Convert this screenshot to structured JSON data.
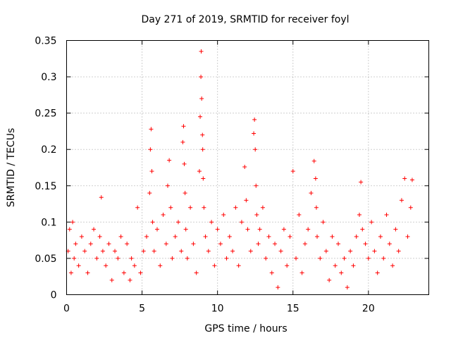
{
  "chart_data": {
    "type": "scatter",
    "title": "Day 271 of 2019, SRMTID for receiver foyl",
    "xlabel": "GPS time / hours",
    "ylabel": "SRMTID / TECUs",
    "xlim": [
      0,
      24
    ],
    "ylim": [
      0,
      0.35
    ],
    "x_ticks": [
      0,
      5,
      10,
      15,
      20
    ],
    "x_tick_labels": [
      "0",
      "5",
      "10",
      "15",
      "20"
    ],
    "y_ticks": [
      0,
      0.05,
      0.1,
      0.15,
      0.2,
      0.25,
      0.3,
      0.35
    ],
    "y_tick_labels": [
      "0",
      "0.05",
      "0.1",
      "0.15",
      "0.2",
      "0.25",
      "0.3",
      "0.35"
    ],
    "grid": true,
    "marker": "+",
    "color": "#ff0000",
    "series": [
      {
        "name": "SRMTID",
        "x": [
          0.1,
          0.2,
          0.3,
          0.4,
          0.5,
          0.6,
          0.8,
          1.0,
          1.2,
          1.4,
          1.6,
          1.8,
          2.0,
          2.2,
          2.3,
          2.4,
          2.6,
          2.8,
          3.0,
          3.2,
          3.4,
          3.6,
          3.8,
          4.0,
          4.2,
          4.3,
          4.5,
          4.7,
          4.9,
          5.1,
          5.3,
          5.5,
          5.55,
          5.6,
          5.65,
          5.7,
          5.8,
          6.0,
          6.2,
          6.4,
          6.6,
          6.7,
          6.8,
          6.9,
          7.0,
          7.2,
          7.4,
          7.6,
          7.7,
          7.75,
          7.8,
          7.85,
          7.9,
          8.0,
          8.2,
          8.4,
          8.6,
          8.8,
          8.85,
          8.9,
          8.92,
          8.95,
          9.0,
          9.02,
          9.05,
          9.1,
          9.2,
          9.4,
          9.6,
          9.8,
          10.0,
          10.2,
          10.4,
          10.6,
          10.8,
          11.0,
          11.2,
          11.4,
          11.6,
          11.8,
          11.9,
          12.0,
          12.2,
          12.4,
          12.45,
          12.5,
          12.55,
          12.6,
          12.7,
          12.8,
          13.0,
          13.2,
          13.4,
          13.6,
          13.8,
          14.0,
          14.2,
          14.4,
          14.6,
          14.8,
          15.0,
          15.2,
          15.4,
          15.6,
          15.8,
          16.0,
          16.2,
          16.4,
          16.5,
          16.55,
          16.6,
          16.8,
          17.0,
          17.2,
          17.4,
          17.6,
          17.8,
          18.0,
          18.2,
          18.4,
          18.6,
          18.8,
          19.0,
          19.2,
          19.4,
          19.5,
          19.6,
          19.8,
          20.0,
          20.2,
          20.4,
          20.6,
          20.8,
          21.0,
          21.2,
          21.4,
          21.6,
          21.8,
          22.0,
          22.2,
          22.4,
          22.6,
          22.8,
          22.9
        ],
        "y": [
          0.06,
          0.09,
          0.03,
          0.1,
          0.05,
          0.07,
          0.04,
          0.08,
          0.06,
          0.03,
          0.07,
          0.09,
          0.05,
          0.08,
          0.134,
          0.06,
          0.04,
          0.07,
          0.02,
          0.06,
          0.05,
          0.08,
          0.03,
          0.07,
          0.02,
          0.05,
          0.04,
          0.12,
          0.03,
          0.06,
          0.08,
          0.14,
          0.2,
          0.228,
          0.17,
          0.1,
          0.06,
          0.09,
          0.04,
          0.11,
          0.07,
          0.15,
          0.185,
          0.12,
          0.05,
          0.08,
          0.1,
          0.06,
          0.21,
          0.232,
          0.18,
          0.14,
          0.09,
          0.05,
          0.12,
          0.07,
          0.03,
          0.17,
          0.245,
          0.3,
          0.335,
          0.27,
          0.22,
          0.2,
          0.16,
          0.12,
          0.08,
          0.06,
          0.1,
          0.04,
          0.09,
          0.07,
          0.11,
          0.05,
          0.08,
          0.06,
          0.12,
          0.04,
          0.1,
          0.176,
          0.13,
          0.09,
          0.06,
          0.222,
          0.241,
          0.2,
          0.15,
          0.11,
          0.07,
          0.09,
          0.12,
          0.05,
          0.08,
          0.03,
          0.07,
          0.01,
          0.06,
          0.09,
          0.04,
          0.08,
          0.17,
          0.05,
          0.11,
          0.03,
          0.07,
          0.09,
          0.14,
          0.184,
          0.16,
          0.12,
          0.08,
          0.05,
          0.1,
          0.06,
          0.02,
          0.08,
          0.04,
          0.07,
          0.03,
          0.05,
          0.01,
          0.06,
          0.04,
          0.08,
          0.11,
          0.155,
          0.09,
          0.07,
          0.05,
          0.1,
          0.06,
          0.03,
          0.08,
          0.05,
          0.11,
          0.07,
          0.04,
          0.09,
          0.06,
          0.13,
          0.16,
          0.08,
          0.12,
          0.158
        ]
      }
    ]
  }
}
